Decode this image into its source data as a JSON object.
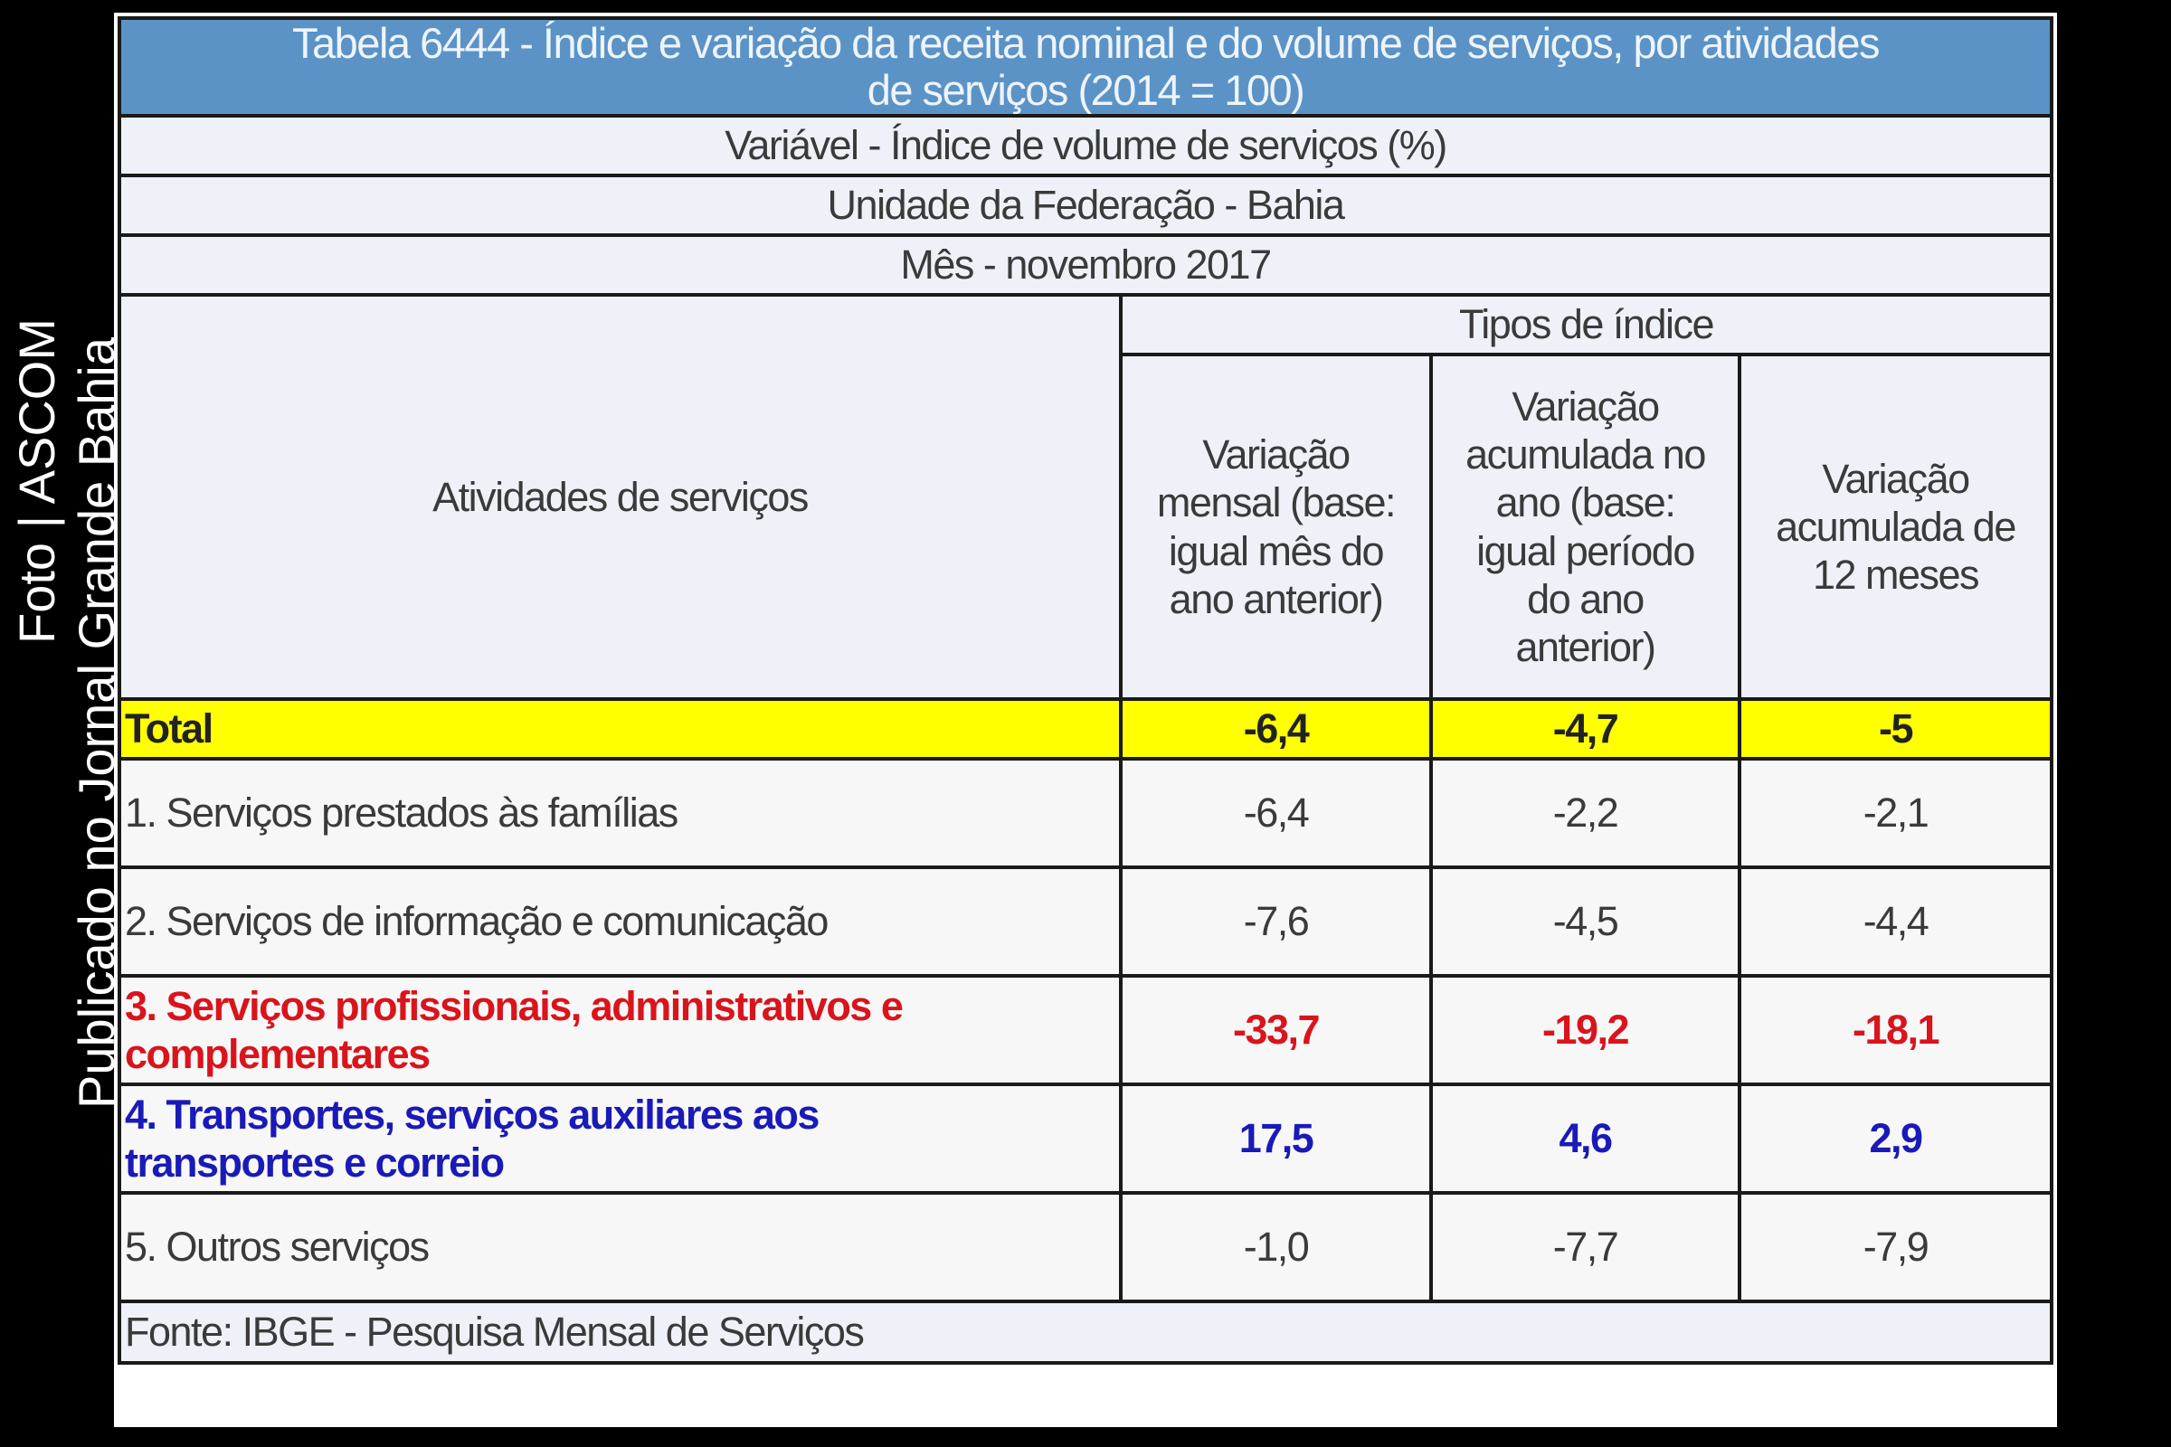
{
  "watermark": {
    "line1": "Foto | ASCOM",
    "line2": "Publicado no Jornal Grande Bahia"
  },
  "table": {
    "title": "Tabela 6444 - Índice e variação da receita nominal e do volume de serviços, por atividades\nde serviços (2014 = 100)",
    "variable": "Variável - Índice de volume de serviços (%)",
    "unit": "Unidade da Federação - Bahia",
    "month": "Mês - novembro 2017",
    "row_header": "Atividades de serviços",
    "group_header": "Tipos de índice",
    "columns": [
      "Variação\nmensal (base:\nigual mês do\nano anterior)",
      "Variação\nacumulada no\nano (base:\nigual período\ndo ano\nanterior)",
      "Variação\nacumulada de\n12 meses"
    ],
    "rows": [
      {
        "label": "Total",
        "values": [
          "-6,4",
          "-4,7",
          "-5"
        ]
      },
      {
        "label": "1. Serviços prestados às famílias",
        "values": [
          "-6,4",
          "-2,2",
          "-2,1"
        ]
      },
      {
        "label": "2. Serviços de informação e comunicação",
        "values": [
          "-7,6",
          "-4,5",
          "-4,4"
        ]
      },
      {
        "label": "3. Serviços profissionais, administrativos e\ncomplementares",
        "values": [
          "-33,7",
          "-19,2",
          "-18,1"
        ]
      },
      {
        "label": "4. Transportes, serviços auxiliares aos\ntransportes e correio",
        "values": [
          "17,5",
          "4,6",
          "2,9"
        ]
      },
      {
        "label": "5. Outros serviços",
        "values": [
          "-1,0",
          "-7,7",
          "-7,9"
        ]
      }
    ],
    "source": "Fonte: IBGE - Pesquisa Mensal de Serviços"
  },
  "colors": {
    "title_bg": "#5b93c7",
    "total_bg": "#ffff00",
    "highlight_red": "#d9141c",
    "highlight_blue": "#1a1ab8"
  }
}
